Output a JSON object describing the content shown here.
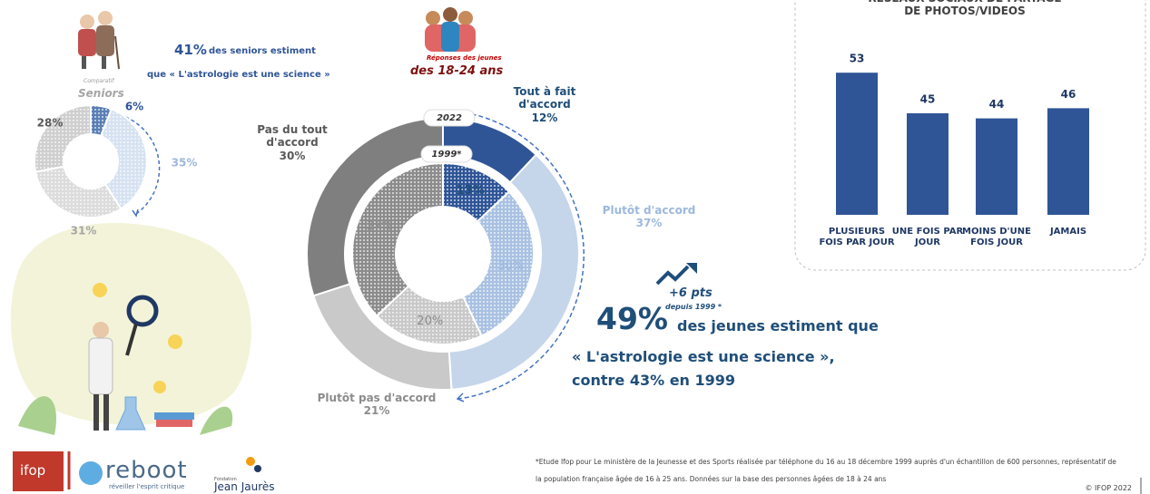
{
  "seniors": {
    "stat": "41%",
    "stat_text": "des seniors estiment",
    "quote": "que  « L'astrologie est une science »",
    "caption": "Comparatif",
    "title": "Seniors"
  },
  "youth": {
    "caption": "Réponses des jeunes",
    "title": "des 18-24 ans",
    "trend": "+6 pts",
    "trend_note": "depuis 1999 *",
    "stat": "49%",
    "stat_text": "des jeunes estiment que",
    "quote": "« L'astrologie est une science »,",
    "comparison": "contre 43% en 1999"
  },
  "chart_data": [
    {
      "type": "donut",
      "pattern": true,
      "values": [
        6,
        35,
        31,
        28
      ],
      "value_labels": [
        "6%",
        "35%",
        "31%",
        "28%"
      ],
      "colors": [
        "#5b7fb5",
        "#d6e2f1",
        "#dcdcdc",
        "#cfcfcf"
      ],
      "label_colors": [
        "#2f5597",
        "#9db8dd",
        "#a6a6a6",
        "#595959"
      ]
    },
    {
      "type": "nested-donut",
      "categories": [
        "Tout à fait d'accord",
        "Plutôt d'accord",
        "Plutôt pas d'accord",
        "Pas du tout d'accord"
      ],
      "label_colors": [
        "#1f4e79",
        "#9db8dd",
        "#8c8c8c",
        "#595959"
      ],
      "series": [
        {
          "name": "2022",
          "pattern": false,
          "colors": [
            "#2f5597",
            "#c5d5ea",
            "#c9c9c9",
            "#7f7f7f"
          ],
          "values": [
            12,
            37,
            21,
            30
          ],
          "value_labels": [
            "12%",
            "37%",
            "21%",
            "30%"
          ]
        },
        {
          "name": "1999*",
          "pattern": true,
          "colors": [
            "#2f5597",
            "#a9c1e2",
            "#c9c9c9",
            "#8c8c8c"
          ],
          "values": [
            13,
            30,
            20,
            37
          ],
          "value_labels": [
            "13%",
            "30%",
            "20%",
            "37%"
          ]
        }
      ]
    },
    {
      "type": "bar",
      "title": "RÉSEAUX SOCIAUX DE PARTAGE DE PHOTOS/VIDEOS",
      "categories": [
        "PLUSIEURS FOIS PAR JOUR",
        "UNE FOIS PAR JOUR",
        "MOINS D'UNE FOIS JOUR",
        "JAMAIS"
      ],
      "values": [
        53,
        45,
        44,
        46
      ],
      "color": "#2f5597",
      "ylim": [
        25,
        55
      ]
    }
  ],
  "footnote": "*Etude Ifop pour Le ministère de la Jeunesse et des Sports réalisée par téléphone du 16 au 18 décembre 1999 auprès d'un échantillon de 600 personnes, représentatif de la population française âgée de 16 à 25 ans. Données sur la base des personnes âgées de 18 à 24 ans",
  "copyright": "© IFOP 2022",
  "logos": {
    "ifop": "ifop",
    "reboot": "reboot",
    "reboot_tagline": "réveiller l'esprit critique",
    "foundation_prefix": "Fondation",
    "foundation": "Jean Jaurès"
  }
}
